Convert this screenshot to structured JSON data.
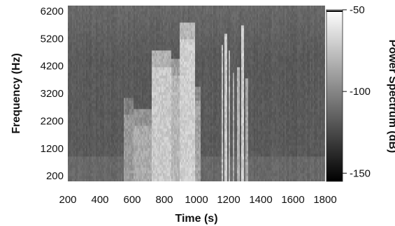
{
  "chart_data": {
    "type": "heatmap",
    "title": "",
    "xlabel": "Time (s)",
    "ylabel": "Frequency (Hz)",
    "xlim": [
      200,
      1800
    ],
    "ylim": [
      0,
      6400
    ],
    "x_ticks": [
      200,
      400,
      600,
      800,
      1000,
      1200,
      1400,
      1600,
      1800
    ],
    "x_tick_labels": [
      "200",
      "400",
      "600",
      "800",
      "1000",
      "1200",
      "1400",
      "1600",
      "1800"
    ],
    "y_ticks": [
      200,
      1200,
      2200,
      3200,
      4200,
      5200,
      6200
    ],
    "y_tick_labels": [
      "200",
      "1200",
      "2200",
      "3200",
      "4200",
      "5200",
      "6200"
    ],
    "colorbar": {
      "label": "Power Spectrum (dB)",
      "range": [
        -155,
        -50
      ],
      "ticks": [
        -50,
        -100,
        -150
      ],
      "tick_labels": [
        "-50",
        "-100",
        "-150"
      ],
      "colormap": "gray"
    },
    "background_level_db": -118,
    "vocal_segments": [
      {
        "time_range": [
          550,
          610
        ],
        "freq_max": 3000,
        "peak_db": -92
      },
      {
        "time_range": [
          610,
          720
        ],
        "freq_max": 2600,
        "peak_db": -85
      },
      {
        "time_range": [
          720,
          840
        ],
        "freq_max": 4800,
        "peak_db": -72
      },
      {
        "time_range": [
          840,
          900
        ],
        "freq_max": 4500,
        "peak_db": -80
      },
      {
        "time_range": [
          900,
          990
        ],
        "freq_max": 5800,
        "peak_db": -70
      },
      {
        "time_range": [
          990,
          1030
        ],
        "freq_max": 3500,
        "peak_db": -88
      }
    ],
    "transient_streaks": [
      {
        "time": 1160,
        "freq_max": 5000,
        "peak_db": -75
      },
      {
        "time": 1185,
        "freq_max": 5400,
        "peak_db": -72
      },
      {
        "time": 1205,
        "freq_max": 4800,
        "peak_db": -80
      },
      {
        "time": 1230,
        "freq_max": 4000,
        "peak_db": -85
      },
      {
        "time": 1260,
        "freq_max": 4200,
        "peak_db": -82
      },
      {
        "time": 1290,
        "freq_max": 5700,
        "peak_db": -70
      },
      {
        "time": 1310,
        "freq_max": 3800,
        "peak_db": -88
      }
    ]
  }
}
